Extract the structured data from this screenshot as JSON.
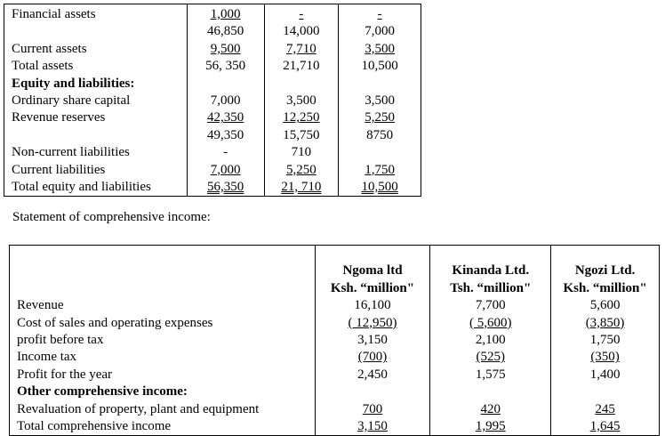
{
  "balance_sheet": {
    "rows": [
      {
        "label": "Financial assets",
        "bold": false,
        "values": [
          {
            "v": "1,000",
            "u": "single"
          },
          {
            "v": "-",
            "u": "single"
          },
          {
            "v": "-",
            "u": "single"
          }
        ]
      },
      {
        "label": "",
        "bold": false,
        "values": [
          {
            "v": "46,850"
          },
          {
            "v": "14,000"
          },
          {
            "v": "7,000"
          }
        ]
      },
      {
        "label": "Current assets",
        "bold": false,
        "values": [
          {
            "v": "9,500",
            "u": "single"
          },
          {
            "v": "7,710",
            "u": "single"
          },
          {
            "v": "3,500",
            "u": "single"
          }
        ]
      },
      {
        "label": "Total assets",
        "bold": false,
        "values": [
          {
            "v": "56, 350"
          },
          {
            "v": "21,710"
          },
          {
            "v": "10,500"
          }
        ]
      },
      {
        "label": "Equity and liabilities:",
        "bold": true,
        "values": [
          {
            "v": ""
          },
          {
            "v": ""
          },
          {
            "v": ""
          }
        ]
      },
      {
        "label": "Ordinary share capital",
        "bold": false,
        "values": [
          {
            "v": "7,000"
          },
          {
            "v": "3,500"
          },
          {
            "v": "3,500"
          }
        ]
      },
      {
        "label": "Revenue reserves",
        "bold": false,
        "values": [
          {
            "v": "42,350",
            "u": "single"
          },
          {
            "v": "12,250",
            "u": "single"
          },
          {
            "v": "5,250",
            "u": "single"
          }
        ]
      },
      {
        "label": "",
        "bold": false,
        "values": [
          {
            "v": "49,350"
          },
          {
            "v": "15,750"
          },
          {
            "v": "8750"
          }
        ]
      },
      {
        "label": "Non-current liabilities",
        "bold": false,
        "values": [
          {
            "v": "-"
          },
          {
            "v": "710"
          },
          {
            "v": ""
          }
        ]
      },
      {
        "label": "Current liabilities",
        "bold": false,
        "values": [
          {
            "v": "7,000",
            "u": "single"
          },
          {
            "v": "5,250",
            "u": "single"
          },
          {
            "v": "1,750",
            "u": "single"
          }
        ]
      },
      {
        "label": "Total equity and liabilities",
        "bold": false,
        "values": [
          {
            "v": "56,350",
            "u": "double"
          },
          {
            "v": "21, 710",
            "u": "double"
          },
          {
            "v": "10,500",
            "u": "double"
          }
        ]
      }
    ]
  },
  "income_statement": {
    "title": "Statement of comprehensive income:",
    "headers": [
      {
        "name": "Ngoma ltd",
        "currency": "Ksh. “million\""
      },
      {
        "name": "Kinanda Ltd.",
        "currency": "Tsh. “million\""
      },
      {
        "name": "Ngozi Ltd.",
        "currency": "Ksh. “million\""
      }
    ],
    "rows": [
      {
        "label": "Revenue",
        "bold": false,
        "values": [
          {
            "v": "16,100"
          },
          {
            "v": "7,700"
          },
          {
            "v": "5,600"
          }
        ]
      },
      {
        "label": "Cost of sales and operating expenses",
        "bold": false,
        "values": [
          {
            "v": "( 12,950)",
            "u": "single"
          },
          {
            "v": "( 5,600)",
            "u": "single"
          },
          {
            "v": "(3,850)",
            "u": "single"
          }
        ]
      },
      {
        "label": "profit before tax",
        "bold": false,
        "values": [
          {
            "v": "3,150"
          },
          {
            "v": "2,100"
          },
          {
            "v": "1,750"
          }
        ]
      },
      {
        "label": "Income tax",
        "bold": false,
        "values": [
          {
            "v": "(700)",
            "u": "single"
          },
          {
            "v": "(525)",
            "u": "single"
          },
          {
            "v": "(350)",
            "u": "single"
          }
        ]
      },
      {
        "label": "Profit for the year",
        "bold": false,
        "values": [
          {
            "v": "2,450"
          },
          {
            "v": "1,575"
          },
          {
            "v": "1,400"
          }
        ]
      },
      {
        "label": "Other comprehensive income:",
        "bold": true,
        "values": [
          {
            "v": ""
          },
          {
            "v": ""
          },
          {
            "v": ""
          }
        ]
      },
      {
        "label": "Revaluation of property, plant and equipment",
        "bold": false,
        "values": [
          {
            "v": "700",
            "u": "single"
          },
          {
            "v": "420",
            "u": "single"
          },
          {
            "v": "245",
            "u": "single"
          }
        ]
      },
      {
        "label": "Total comprehensive income",
        "bold": false,
        "values": [
          {
            "v": "3,150",
            "u": "single"
          },
          {
            "v": "1,995",
            "u": "single"
          },
          {
            "v": "1,645",
            "u": "single"
          }
        ]
      }
    ]
  }
}
